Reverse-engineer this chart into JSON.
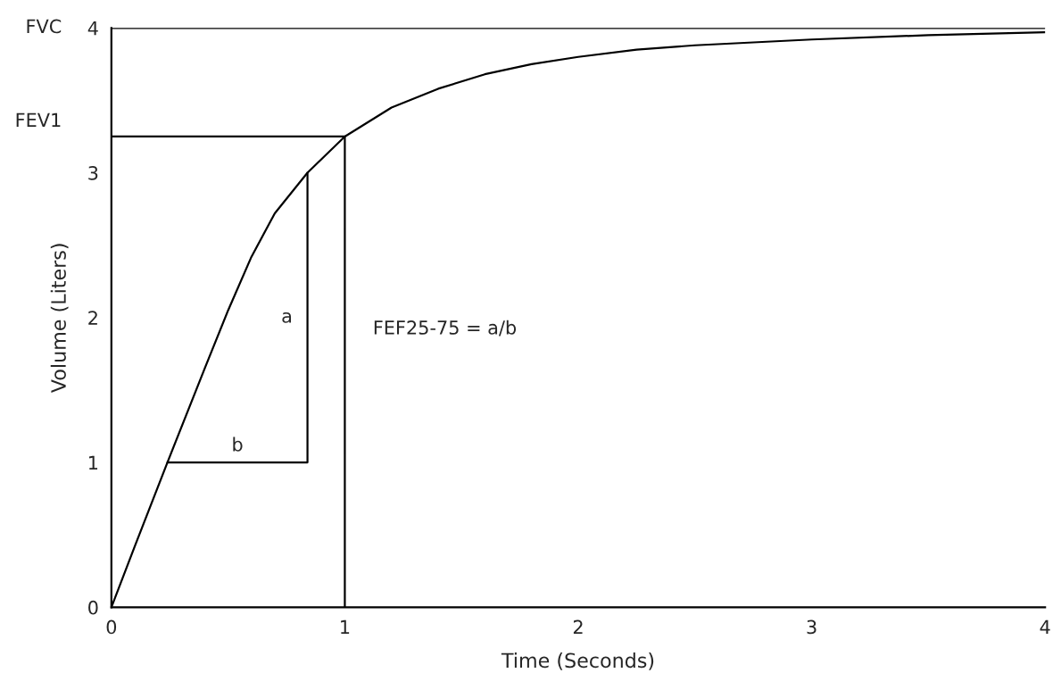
{
  "chart_data": {
    "type": "line",
    "xlabel": "Time (Seconds)",
    "ylabel": "Volume (Liters)",
    "xlim": [
      0,
      4
    ],
    "ylim": [
      0,
      4
    ],
    "xticks": [
      0,
      1,
      2,
      3,
      4
    ],
    "yticks": [
      0,
      1,
      2,
      3,
      4
    ],
    "grid": false,
    "marker": "none",
    "line_style": "solid",
    "series": [
      {
        "color": "#000000",
        "x": [
          0,
          0.1,
          0.24,
          0.4,
          0.5,
          0.6,
          0.7,
          0.84,
          1.0,
          1.2,
          1.4,
          1.6,
          1.8,
          2.0,
          2.25,
          2.5,
          3.0,
          3.5,
          4.0
        ],
        "values": [
          0,
          0.42,
          1.0,
          1.65,
          2.05,
          2.42,
          2.72,
          3.0,
          3.25,
          3.45,
          3.58,
          3.68,
          3.75,
          3.8,
          3.85,
          3.88,
          3.92,
          3.95,
          3.97
        ]
      },
      {
        "color": "#000000",
        "x": [
          0,
          1,
          1
        ],
        "values": [
          3.25,
          3.25,
          0
        ]
      },
      {
        "color": "#000000",
        "x": [
          0.24,
          0.84,
          0.84
        ],
        "values": [
          1,
          1,
          3
        ]
      }
    ],
    "ref_lines": [
      {
        "axis": "y",
        "value": 4,
        "label": "FVC",
        "color": "#000000"
      }
    ],
    "annotations": [
      {
        "text": "FEV1",
        "x": 0,
        "y": 3.25
      },
      {
        "text": "a",
        "x": 0.84,
        "y": 2.0
      },
      {
        "text": "b",
        "x": 0.54,
        "y": 1
      },
      "FEF25-75 = a/b"
    ]
  }
}
